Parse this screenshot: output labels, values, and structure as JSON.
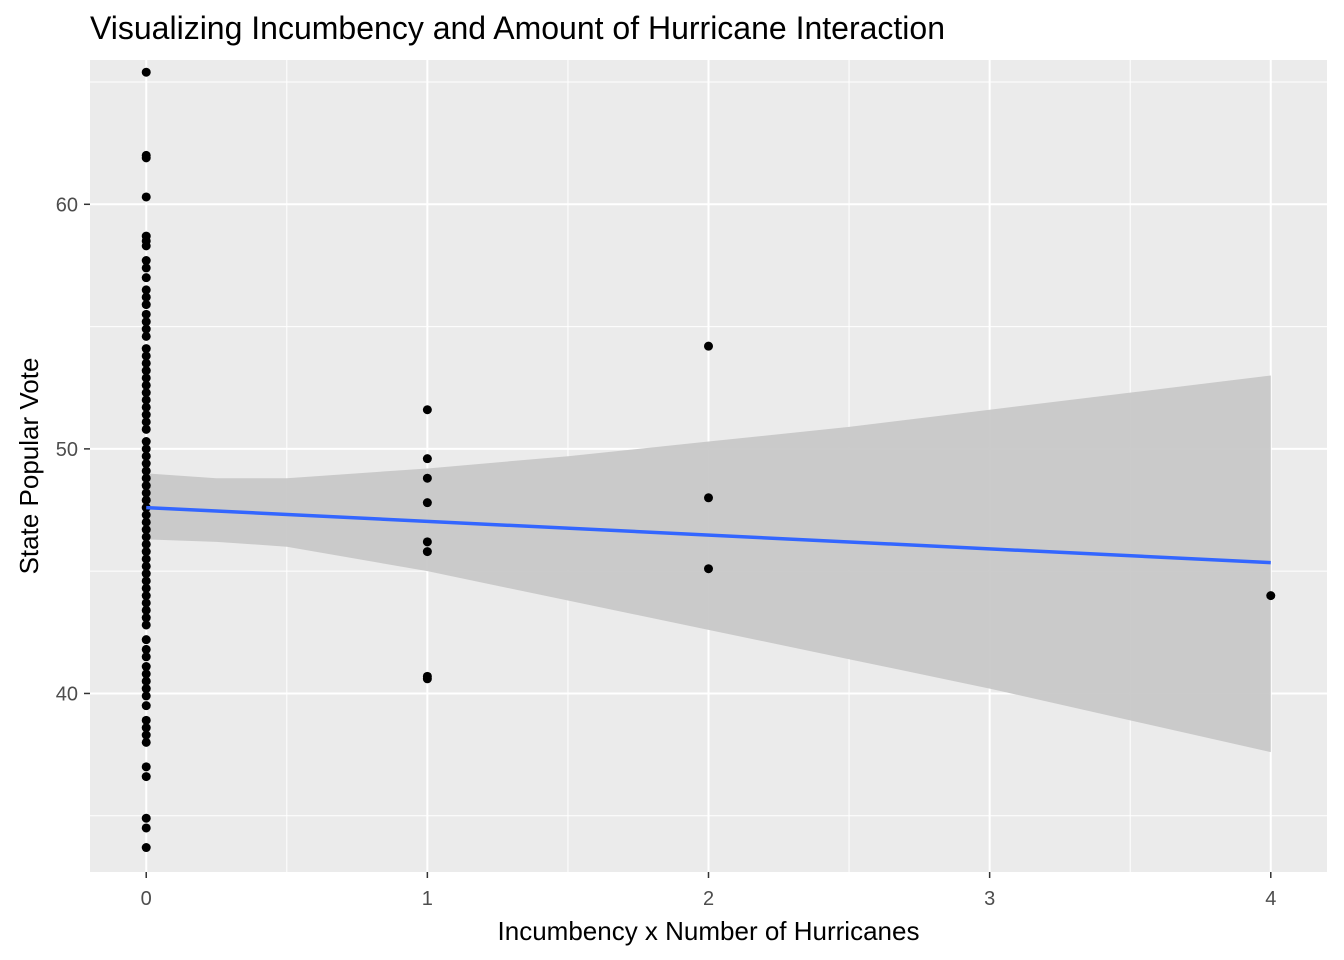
{
  "chart_data": {
    "type": "scatter",
    "title": "Visualizing Incumbency and Amount of Hurricane Interaction",
    "xlabel": "Incumbency x Number of Hurricanes",
    "ylabel": "State Popular Vote",
    "xlim": [
      -0.2,
      4.2
    ],
    "ylim": [
      32.7,
      65.9
    ],
    "x_ticks": [
      0,
      1,
      2,
      3,
      4
    ],
    "y_ticks": [
      40,
      50,
      60
    ],
    "grid": true,
    "colors": {
      "panel": "#ebebeb",
      "grid": "#ffffff",
      "points": "#000000",
      "line": "#3366ff",
      "ribbon": "#c8c8c8"
    },
    "points": [
      [
        0,
        65.4
      ],
      [
        0,
        62.0
      ],
      [
        0,
        61.9
      ],
      [
        0,
        60.3
      ],
      [
        0,
        58.7
      ],
      [
        0,
        58.5
      ],
      [
        0,
        58.3
      ],
      [
        0,
        57.7
      ],
      [
        0,
        57.4
      ],
      [
        0,
        57.0
      ],
      [
        0,
        56.5
      ],
      [
        0,
        56.2
      ],
      [
        0,
        55.9
      ],
      [
        0,
        55.5
      ],
      [
        0,
        55.2
      ],
      [
        0,
        54.9
      ],
      [
        0,
        54.6
      ],
      [
        0,
        54.1
      ],
      [
        0,
        53.8
      ],
      [
        0,
        53.5
      ],
      [
        0,
        53.2
      ],
      [
        0,
        52.9
      ],
      [
        0,
        52.6
      ],
      [
        0,
        52.3
      ],
      [
        0,
        52.0
      ],
      [
        0,
        51.7
      ],
      [
        0,
        51.4
      ],
      [
        0,
        51.1
      ],
      [
        0,
        50.8
      ],
      [
        0,
        50.3
      ],
      [
        0,
        50.0
      ],
      [
        0,
        49.7
      ],
      [
        0,
        49.4
      ],
      [
        0,
        49.1
      ],
      [
        0,
        48.8
      ],
      [
        0,
        48.5
      ],
      [
        0,
        48.2
      ],
      [
        0,
        47.9
      ],
      [
        0,
        47.6
      ],
      [
        0,
        47.3
      ],
      [
        0,
        47.0
      ],
      [
        0,
        46.7
      ],
      [
        0,
        46.4
      ],
      [
        0,
        46.1
      ],
      [
        0,
        45.8
      ],
      [
        0,
        45.5
      ],
      [
        0,
        45.2
      ],
      [
        0,
        44.9
      ],
      [
        0,
        44.6
      ],
      [
        0,
        44.3
      ],
      [
        0,
        44.0
      ],
      [
        0,
        43.7
      ],
      [
        0,
        43.4
      ],
      [
        0,
        43.1
      ],
      [
        0,
        42.8
      ],
      [
        0,
        42.2
      ],
      [
        0,
        41.8
      ],
      [
        0,
        41.5
      ],
      [
        0,
        41.1
      ],
      [
        0,
        40.8
      ],
      [
        0,
        40.5
      ],
      [
        0,
        40.2
      ],
      [
        0,
        39.9
      ],
      [
        0,
        39.5
      ],
      [
        0,
        38.9
      ],
      [
        0,
        38.6
      ],
      [
        0,
        38.3
      ],
      [
        0,
        38.0
      ],
      [
        0,
        37.0
      ],
      [
        0,
        36.6
      ],
      [
        0,
        34.9
      ],
      [
        0,
        34.5
      ],
      [
        0,
        33.7
      ],
      [
        1,
        51.6
      ],
      [
        1,
        49.6
      ],
      [
        1,
        48.8
      ],
      [
        1,
        47.8
      ],
      [
        1,
        46.2
      ],
      [
        1,
        45.8
      ],
      [
        1,
        40.7
      ],
      [
        1,
        40.6
      ],
      [
        2,
        54.2
      ],
      [
        2,
        48.0
      ],
      [
        2,
        45.1
      ],
      [
        4,
        44.0
      ]
    ],
    "fit_line": {
      "x": [
        0,
        4
      ],
      "y": [
        47.6,
        45.35
      ]
    },
    "confidence_band": {
      "x": [
        0,
        0.25,
        0.5,
        1,
        1.5,
        2,
        2.5,
        3,
        3.5,
        4
      ],
      "upper": [
        49.0,
        48.8,
        48.8,
        49.2,
        49.7,
        50.3,
        50.9,
        51.6,
        52.3,
        53.0
      ],
      "lower": [
        46.3,
        46.2,
        46.0,
        45.0,
        43.8,
        42.6,
        41.4,
        40.2,
        38.9,
        37.6
      ]
    }
  }
}
